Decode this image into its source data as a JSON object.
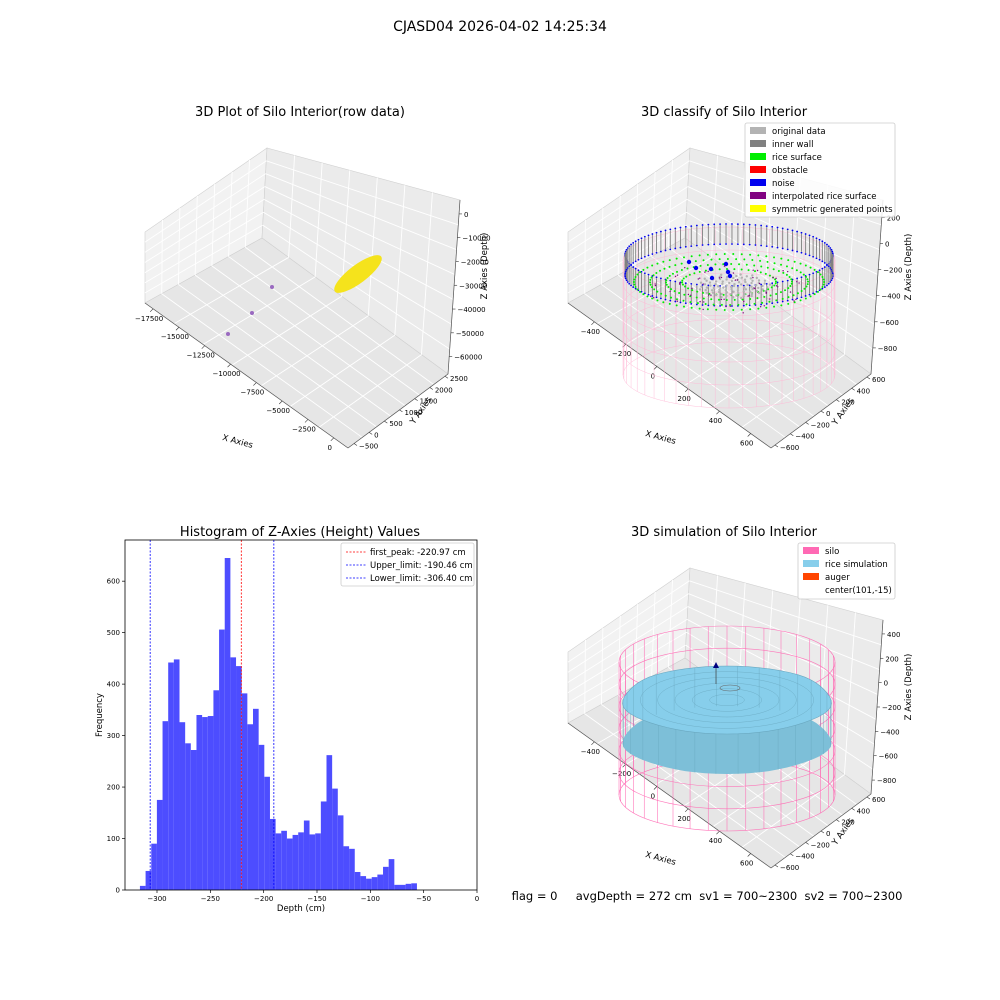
{
  "suptitle": "CJASD04 2026-04-02 14:25:34",
  "colors": {
    "hist_bar": "#4d4dff",
    "peak_line": "#ff0000",
    "limit_line": "#0000ff",
    "original": "#b3b3b3",
    "inner_wall": "#808080",
    "rice_surface": "#00ee00",
    "obstacle": "#ff0000",
    "noise": "#0000ee",
    "interpolated": "#800080",
    "symmetric": "#ffff00",
    "silo": "#ff69b4",
    "rice_sim": "#87ceeb",
    "auger": "#ff4500",
    "raw_ellipse": "#f5e31c"
  },
  "plot1": {
    "title": "3D Plot of Silo Interior(row data)",
    "xlabel": "X Axies",
    "ylabel": "Y Axies",
    "zlabel": "Z Axies (Depth)",
    "xticks": [
      "−17500",
      "−15000",
      "−12500",
      "−10000",
      "−7500",
      "−5000",
      "−2500",
      "0"
    ],
    "yticks": [
      "−500",
      "0",
      "500",
      "1000",
      "1500",
      "2000",
      "2500"
    ],
    "zticks": [
      "0",
      "−10000",
      "−20000",
      "−30000",
      "−40000",
      "−50000",
      "−60000"
    ]
  },
  "plot2": {
    "title": "3D classify of Silo Interior",
    "xlabel": "X Axies",
    "ylabel": "Y Axies",
    "zlabel": "Z Axies (Depth)",
    "xticks": [
      "−400",
      "−200",
      "0",
      "200",
      "400",
      "600"
    ],
    "yticks": [
      "−600",
      "−400",
      "−200",
      "0",
      "200",
      "400",
      "600"
    ],
    "zticks": [
      "200",
      "0",
      "−200",
      "−400",
      "−600",
      "−800"
    ],
    "legend": [
      {
        "label": "original data",
        "color": "#b3b3b3"
      },
      {
        "label": "inner wall",
        "color": "#808080"
      },
      {
        "label": "rice surface",
        "color": "#00ee00"
      },
      {
        "label": "obstacle",
        "color": "#ff0000"
      },
      {
        "label": "noise",
        "color": "#0000ee"
      },
      {
        "label": "interpolated rice surface",
        "color": "#800080"
      },
      {
        "label": "symmetric generated points",
        "color": "#ffff00"
      }
    ]
  },
  "plot4": {
    "title": "3D simulation of Silo Interior",
    "xlabel": "X Axies",
    "ylabel": "Y Axies",
    "zlabel": "Z Axies (Depth)",
    "xticks": [
      "−400",
      "−200",
      "0",
      "200",
      "400",
      "600"
    ],
    "yticks": [
      "−600",
      "−400",
      "−200",
      "0",
      "200",
      "400",
      "600"
    ],
    "zticks": [
      "400",
      "200",
      "0",
      "−200",
      "−400",
      "−600",
      "−800"
    ],
    "legend": [
      {
        "label": "silo",
        "color": "#ff69b4"
      },
      {
        "label": "rice simulation",
        "color": "#87ceeb"
      },
      {
        "label": "auger",
        "color": "#ff4500"
      },
      {
        "label": "center(101,-15)",
        "color": ""
      }
    ]
  },
  "status_text": "flag = 0     avgDepth = 272 cm  sv1 = 700~2300  sv2 = 700~2300",
  "chart_data": {
    "type": "bar",
    "title": "Histogram of Z-Axies (Height) Values",
    "xlabel": "Depth (cm)",
    "ylabel": "Frequency",
    "xlim": [
      -330,
      0
    ],
    "ylim": [
      0,
      680
    ],
    "xticks": [
      -300,
      -250,
      -200,
      -150,
      -100,
      -50,
      0
    ],
    "xtick_labels": [
      "−300",
      "−250",
      "−200",
      "−150",
      "−100",
      "−50",
      "0"
    ],
    "yticks": [
      0,
      100,
      200,
      300,
      400,
      500,
      600
    ],
    "bin_start": -316,
    "bin_width": 5.3,
    "values": [
      8,
      37,
      90,
      175,
      328,
      442,
      448,
      326,
      285,
      272,
      340,
      336,
      338,
      388,
      506,
      645,
      452,
      435,
      382,
      322,
      352,
      282,
      220,
      138,
      110,
      115,
      100,
      107,
      112,
      135,
      108,
      110,
      172,
      262,
      197,
      145,
      85,
      80,
      35,
      27,
      22,
      25,
      30,
      45,
      60,
      10,
      10,
      12,
      13
    ],
    "vlines": [
      {
        "label": "first_peak: -220.97 cm",
        "x": -220.97,
        "color": "#ff0000"
      },
      {
        "label": "Upper_limit: -190.46 cm",
        "x": -190.46,
        "color": "#0000ff"
      },
      {
        "label": "Lower_limit: -306.40 cm",
        "x": -306.4,
        "color": "#0000ff"
      }
    ],
    "legend_position": "upper right"
  }
}
